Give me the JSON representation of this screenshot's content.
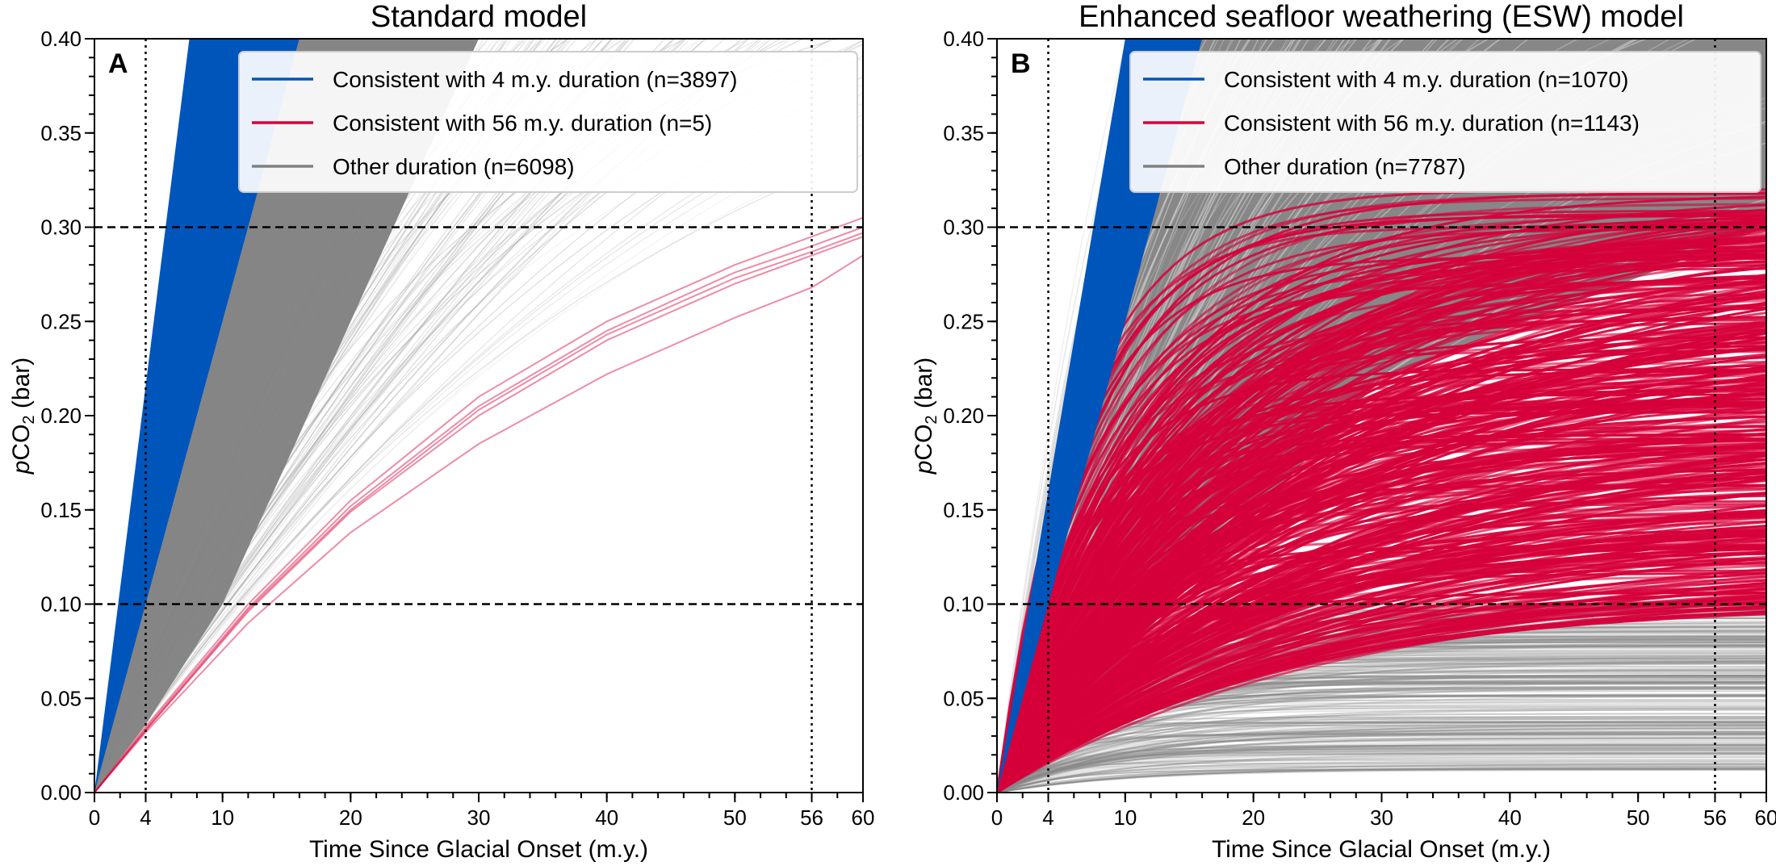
{
  "chart_data": [
    {
      "type": "line",
      "panel_letter": "A",
      "title": "Standard model",
      "xlabel": "Time Since Glacial Onset (m.y.)",
      "ylabel": "pCO2 (bar)",
      "ylabel_prefix": "p",
      "ylabel_main": "CO",
      "ylabel_sub": "2",
      "ylabel_suffix": " (bar)",
      "xlim": [
        0,
        60
      ],
      "ylim": [
        0.0,
        0.4
      ],
      "xticks": [
        0,
        4,
        10,
        20,
        30,
        40,
        50,
        56,
        60
      ],
      "xtick_labels": [
        "0",
        "4",
        "10",
        "20",
        "30",
        "40",
        "50",
        "56",
        "60"
      ],
      "yticks": [
        0.0,
        0.05,
        0.1,
        0.15,
        0.2,
        0.25,
        0.3,
        0.35,
        0.4
      ],
      "ytick_labels": [
        "0.00",
        "0.05",
        "0.10",
        "0.15",
        "0.20",
        "0.25",
        "0.30",
        "0.35",
        "0.40"
      ],
      "grid": false,
      "reference_lines": {
        "horizontal_dashed": [
          0.1,
          0.3
        ],
        "vertical_dotted": [
          4,
          56
        ]
      },
      "legend_position": "top-right",
      "series": [
        {
          "name": "Consistent with 4 m.y. duration (n=3897)",
          "count": 3897,
          "color": "#0055bb",
          "envelope_slope_range": [
            0.025,
            0.054
          ],
          "description": "near-linear steep ensemble reaching 0.10-0.30 bar within 4 m.y."
        },
        {
          "name": "Consistent with 56 m.y. duration (n=5)",
          "count": 5,
          "color": "#d6003a",
          "curves": [
            {
              "x": [
                0,
                4,
                12,
                20,
                30,
                40,
                50,
                56,
                60
              ],
              "y": [
                0.0,
                0.035,
                0.1,
                0.155,
                0.21,
                0.25,
                0.28,
                0.295,
                0.305
              ]
            },
            {
              "x": [
                0,
                4,
                12,
                20,
                30,
                40,
                50,
                56,
                60
              ],
              "y": [
                0.0,
                0.034,
                0.098,
                0.152,
                0.205,
                0.245,
                0.276,
                0.29,
                0.3
              ]
            },
            {
              "x": [
                0,
                4,
                12,
                20,
                30,
                40,
                50,
                56,
                60
              ],
              "y": [
                0.0,
                0.033,
                0.097,
                0.15,
                0.203,
                0.243,
                0.273,
                0.287,
                0.297
              ]
            },
            {
              "x": [
                0,
                4,
                12,
                20,
                30,
                40,
                50,
                56,
                60
              ],
              "y": [
                0.0,
                0.033,
                0.096,
                0.149,
                0.2,
                0.24,
                0.27,
                0.285,
                0.295
              ]
            },
            {
              "x": [
                0,
                4,
                12,
                20,
                30,
                40,
                50,
                56,
                60
              ],
              "y": [
                0.0,
                0.032,
                0.09,
                0.138,
                0.185,
                0.222,
                0.252,
                0.268,
                0.285
              ]
            }
          ]
        },
        {
          "name": "Other duration (n=6098)",
          "count": 6098,
          "color": "#808080",
          "description": "dense ensemble between the 4 m.y. and 56 m.y. groups"
        }
      ]
    },
    {
      "type": "line",
      "panel_letter": "B",
      "title": "Enhanced seafloor weathering (ESW) model",
      "xlabel": "Time Since Glacial Onset (m.y.)",
      "ylabel": "pCO2 (bar)",
      "ylabel_prefix": "p",
      "ylabel_main": "CO",
      "ylabel_sub": "2",
      "ylabel_suffix": " (bar)",
      "xlim": [
        0,
        60
      ],
      "ylim": [
        0.0,
        0.4
      ],
      "xticks": [
        0,
        4,
        10,
        20,
        30,
        40,
        50,
        56,
        60
      ],
      "xtick_labels": [
        "0",
        "4",
        "10",
        "20",
        "30",
        "40",
        "50",
        "56",
        "60"
      ],
      "yticks": [
        0.0,
        0.05,
        0.1,
        0.15,
        0.2,
        0.25,
        0.3,
        0.35,
        0.4
      ],
      "ytick_labels": [
        "0.00",
        "0.05",
        "0.10",
        "0.15",
        "0.20",
        "0.25",
        "0.30",
        "0.35",
        "0.40"
      ],
      "grid": false,
      "reference_lines": {
        "horizontal_dashed": [
          0.1,
          0.3
        ],
        "vertical_dotted": [
          4,
          56
        ]
      },
      "legend_position": "top-right",
      "series": [
        {
          "name": "Consistent with 4 m.y. duration (n=1070)",
          "count": 1070,
          "color": "#0055bb",
          "envelope_slope_range": [
            0.025,
            0.04
          ],
          "description": "near-linear steep ensemble"
        },
        {
          "name": "Consistent with 56 m.y. duration (n=1143)",
          "count": 1143,
          "color": "#d6003a",
          "equilibrium_range": [
            0.1,
            0.31
          ],
          "description": "saturating curves reaching between 0.10 and 0.30 bar by 56 m.y."
        },
        {
          "name": "Other duration (n=7787)",
          "count": 7787,
          "color": "#808080",
          "equilibrium_range_low": [
            0.012,
            0.1
          ],
          "description": "saturating curves levelling below 0.10 bar plus steep curves above 0.30 bar"
        }
      ]
    }
  ]
}
